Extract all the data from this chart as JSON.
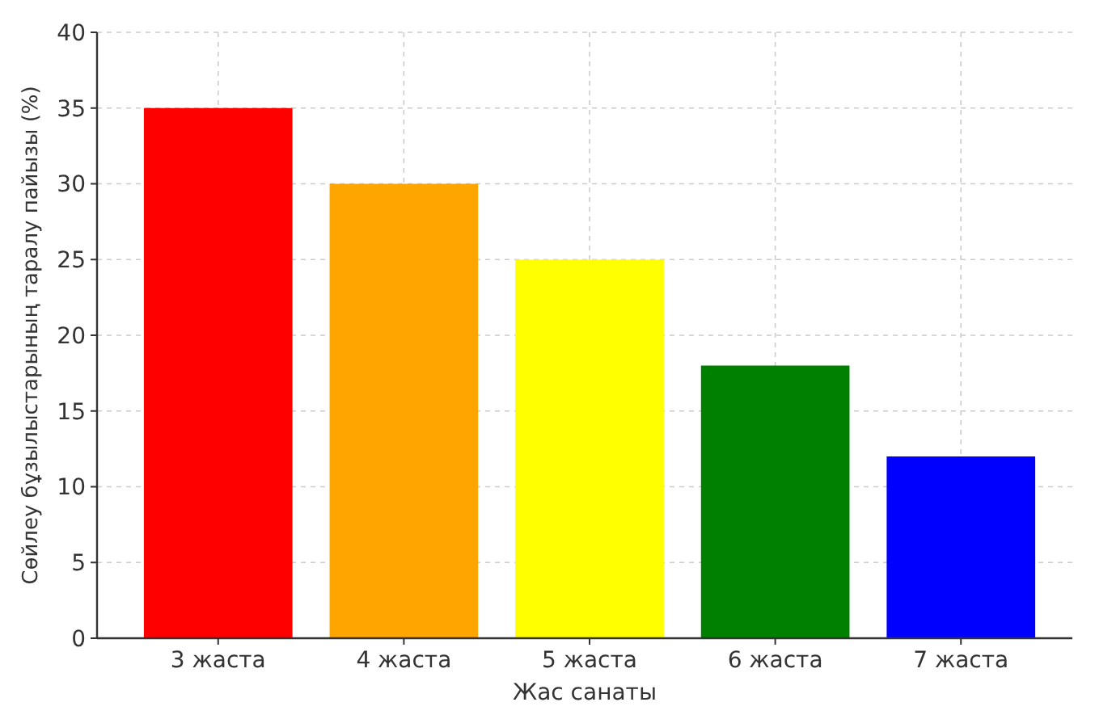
{
  "chart_data": {
    "type": "bar",
    "xlabel": "Жас санаты",
    "ylabel": "Сөйлеу бұзылыстарының таралу пайызы (%)",
    "categories": [
      "3 жаста",
      "4 жаста",
      "5 жаста",
      "6 жаста",
      "7 жаста"
    ],
    "values": [
      35,
      30,
      25,
      18,
      12
    ],
    "colors": [
      "#ff0000",
      "#ffa500",
      "#ffff00",
      "#008000",
      "#0000ff"
    ],
    "ylim": [
      0,
      40
    ],
    "yticks": [
      0,
      5,
      10,
      15,
      20,
      25,
      30,
      35,
      40
    ],
    "grid": true
  }
}
